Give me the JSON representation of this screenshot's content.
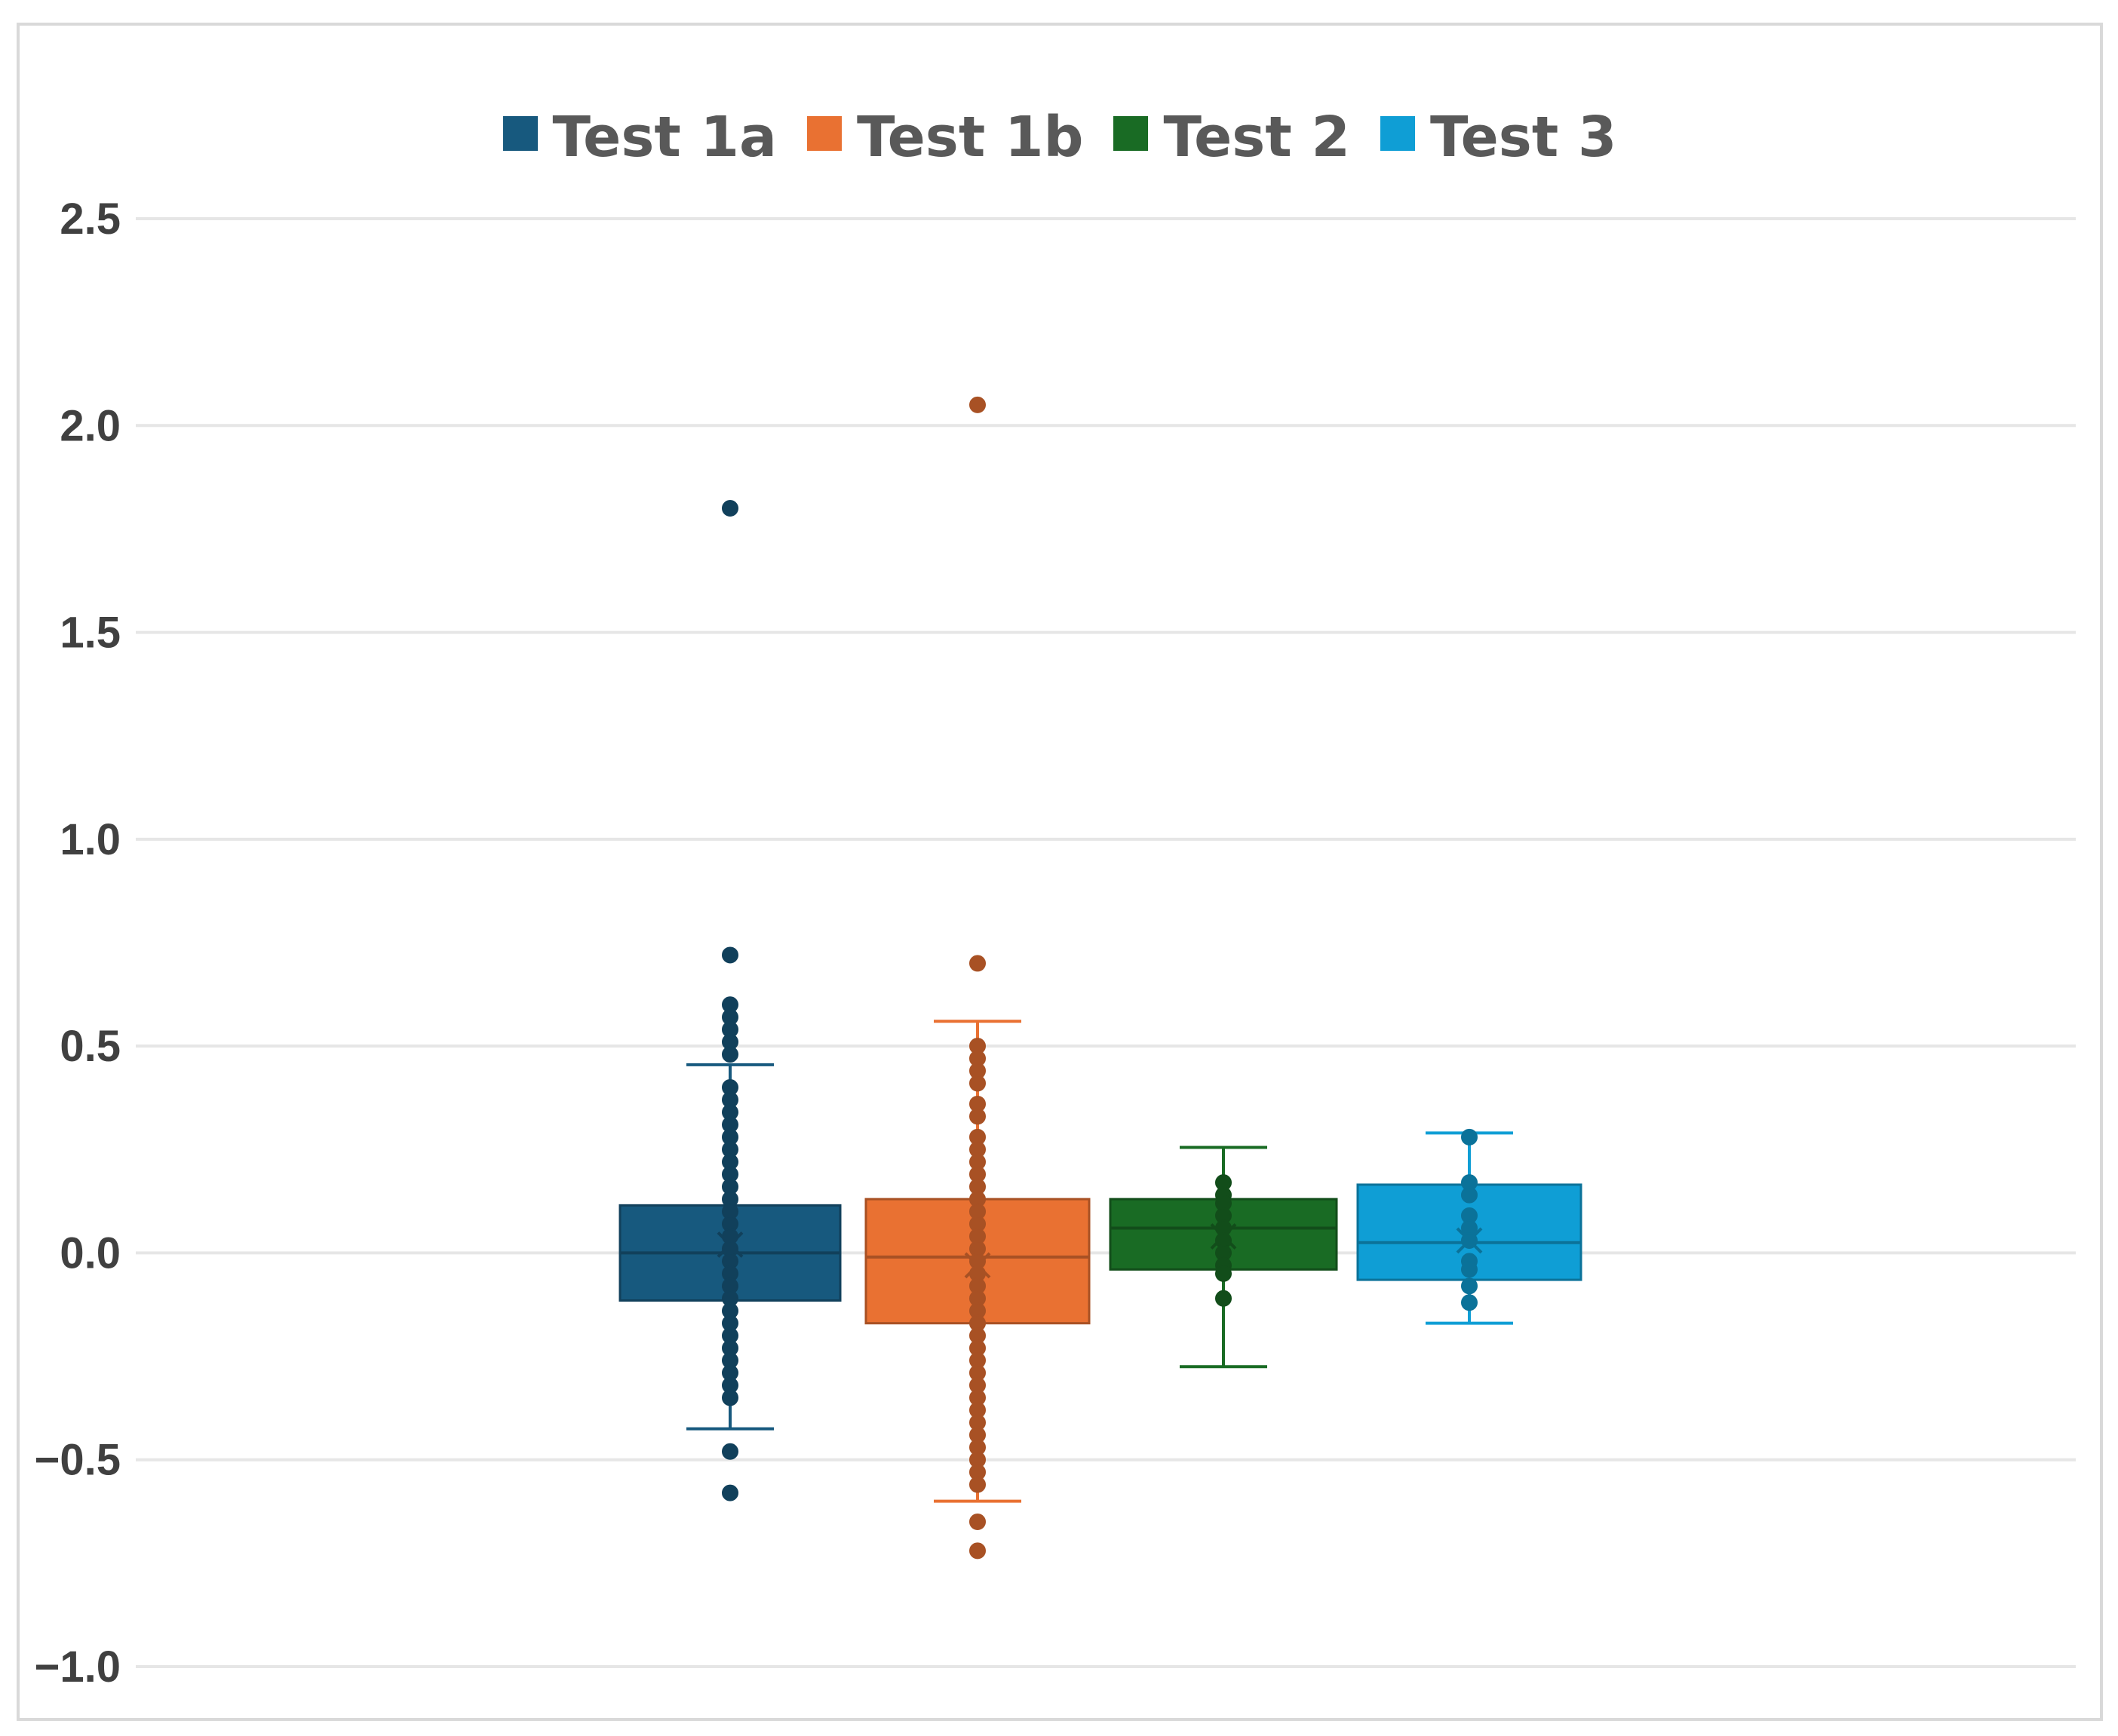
{
  "chart_data": {
    "type": "box",
    "title": "",
    "xlabel": "",
    "ylabel": "",
    "ylim": [
      -1.0,
      2.5
    ],
    "yticks": [
      "2.5",
      "2.0",
      "1.5",
      "1.0",
      "0.5",
      "0.0",
      "−0.5",
      "−1.0"
    ],
    "ytick_values": [
      2.5,
      2.0,
      1.5,
      1.0,
      0.5,
      0.0,
      -0.5,
      -1.0
    ],
    "grid": true,
    "legend_position": "top-center",
    "series": [
      {
        "name": "Test 1a",
        "color": "#17597e",
        "q1": -0.115,
        "median": 0.0,
        "q3": 0.115,
        "mean": 0.02,
        "whisker_low": -0.425,
        "whisker_high": 0.455,
        "points": [
          1.8,
          0.72,
          0.6,
          0.57,
          0.54,
          0.51,
          0.48,
          0.4,
          0.37,
          0.34,
          0.31,
          0.28,
          0.25,
          0.22,
          0.19,
          0.16,
          0.13,
          0.1,
          0.07,
          0.04,
          0.01,
          -0.02,
          -0.05,
          -0.08,
          -0.11,
          -0.14,
          -0.17,
          -0.2,
          -0.23,
          -0.26,
          -0.29,
          -0.32,
          -0.35,
          -0.48,
          -0.58
        ]
      },
      {
        "name": "Test 1b",
        "color": "#e97132",
        "q1": -0.17,
        "median": -0.01,
        "q3": 0.13,
        "mean": -0.03,
        "whisker_low": -0.6,
        "whisker_high": 0.56,
        "points": [
          2.05,
          0.7,
          0.5,
          0.47,
          0.44,
          0.41,
          0.36,
          0.33,
          0.28,
          0.25,
          0.22,
          0.19,
          0.16,
          0.13,
          0.1,
          0.07,
          0.04,
          0.01,
          -0.02,
          -0.05,
          -0.08,
          -0.11,
          -0.14,
          -0.17,
          -0.2,
          -0.23,
          -0.26,
          -0.29,
          -0.32,
          -0.35,
          -0.38,
          -0.41,
          -0.44,
          -0.47,
          -0.5,
          -0.53,
          -0.56,
          -0.65,
          -0.72
        ]
      },
      {
        "name": "Test 2",
        "color": "#196b24",
        "q1": -0.04,
        "median": 0.06,
        "q3": 0.13,
        "mean": 0.04,
        "whisker_low": -0.275,
        "whisker_high": 0.255,
        "points": [
          0.17,
          0.14,
          0.12,
          0.09,
          0.06,
          0.03,
          0.0,
          -0.03,
          -0.05,
          -0.11
        ]
      },
      {
        "name": "Test 3",
        "color": "#0f9ed5",
        "q1": -0.065,
        "median": 0.025,
        "q3": 0.165,
        "mean": 0.03,
        "whisker_low": -0.17,
        "whisker_high": 0.29,
        "points": [
          0.28,
          0.17,
          0.14,
          0.09,
          0.06,
          0.03,
          -0.02,
          -0.04,
          -0.08,
          -0.12
        ]
      }
    ]
  }
}
